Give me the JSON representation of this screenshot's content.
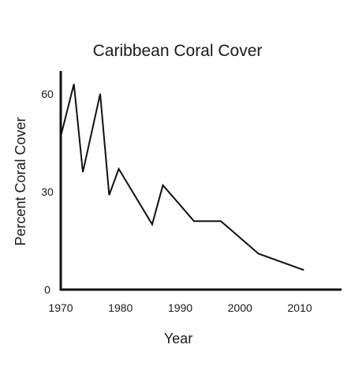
{
  "chart_data": {
    "type": "line",
    "title": "Caribbean Coral Cover",
    "xlabel": "Year",
    "ylabel": "Percent Coral Cover",
    "xlim": [
      1970,
      2017
    ],
    "ylim": [
      0,
      67
    ],
    "x_ticks": [
      1970,
      1980,
      1990,
      2000,
      2010
    ],
    "y_ticks": [
      0,
      30,
      60
    ],
    "grid": false,
    "series": [
      {
        "x": [
          1970,
          1972.2,
          1973.7,
          1976.6,
          1978.1,
          1979.7,
          1985.3,
          1987.1,
          1992.3,
          1996.8,
          2003.1,
          2010.7
        ],
        "y": [
          47,
          63,
          36,
          60,
          29,
          37,
          20,
          32,
          21,
          21,
          11,
          6
        ]
      }
    ],
    "colors": {
      "line": "#111111",
      "axis": "#111111",
      "text": "#1a1a1a"
    }
  }
}
